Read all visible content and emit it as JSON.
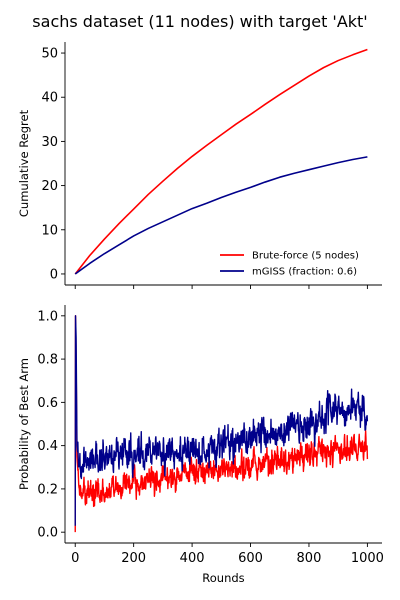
{
  "figure": {
    "title": "sachs dataset (11 nodes) with target 'Akt'"
  },
  "chart_data": [
    {
      "type": "line",
      "title": "",
      "xlabel": "",
      "ylabel": "Cumulative Regret",
      "xlim": [
        -35,
        1050
      ],
      "ylim": [
        -2.5,
        52.5
      ],
      "xticks": [
        0,
        200,
        400,
        600,
        800,
        1000
      ],
      "yticks": [
        0,
        10,
        20,
        30,
        40,
        50
      ],
      "show_x_tick_labels": false,
      "grid": false,
      "legend": "lower-right",
      "series": [
        {
          "name": "Brute-force (5 nodes)",
          "color": "#ff0000",
          "x": [
            0,
            50,
            100,
            150,
            200,
            250,
            300,
            350,
            400,
            450,
            500,
            550,
            600,
            650,
            700,
            750,
            800,
            850,
            900,
            950,
            1000
          ],
          "y": [
            0,
            4.2,
            7.9,
            11.4,
            14.7,
            18.0,
            21.0,
            23.9,
            26.6,
            29.1,
            31.5,
            33.9,
            36.1,
            38.4,
            40.6,
            42.7,
            44.8,
            46.7,
            48.3,
            49.6,
            50.8
          ]
        },
        {
          "name": "mGISS (fraction: 0.6)",
          "color": "#00008b",
          "x": [
            0,
            50,
            100,
            150,
            200,
            250,
            300,
            350,
            400,
            450,
            500,
            550,
            600,
            650,
            700,
            750,
            800,
            850,
            900,
            950,
            1000
          ],
          "y": [
            0,
            2.4,
            4.6,
            6.6,
            8.6,
            10.3,
            11.8,
            13.3,
            14.8,
            16.0,
            17.3,
            18.5,
            19.6,
            20.8,
            21.9,
            22.8,
            23.6,
            24.4,
            25.2,
            25.9,
            26.5
          ]
        }
      ]
    },
    {
      "type": "line",
      "title": "",
      "xlabel": "Rounds",
      "ylabel": "Probability of Best Arm",
      "xlim": [
        -35,
        1050
      ],
      "ylim": [
        -0.05,
        1.05
      ],
      "xticks": [
        0,
        200,
        400,
        600,
        800,
        1000
      ],
      "yticks": [
        0.0,
        0.2,
        0.4,
        0.6,
        0.8,
        1.0
      ],
      "grid": false,
      "legend": "none",
      "series": [
        {
          "color": "#ff0000",
          "noisy_trend": {
            "x": [
              0,
              1,
              3,
              6,
              12,
              30,
              100,
              200,
              300,
              400,
              500,
              600,
              700,
              800,
              900,
              1000
            ],
            "y": [
              0,
              1.0,
              0.8,
              0.35,
              0.2,
              0.17,
              0.18,
              0.22,
              0.25,
              0.27,
              0.29,
              0.31,
              0.33,
              0.35,
              0.38,
              0.41
            ],
            "noise": 0.05
          }
        },
        {
          "color": "#00008b",
          "noisy_trend": {
            "x": [
              0,
              1,
              3,
              6,
              12,
              30,
              100,
              200,
              300,
              400,
              500,
              600,
              700,
              800,
              900,
              1000
            ],
            "y": [
              0.03,
              1.0,
              0.9,
              0.4,
              0.3,
              0.32,
              0.34,
              0.36,
              0.36,
              0.37,
              0.4,
              0.43,
              0.46,
              0.5,
              0.58,
              0.55
            ],
            "noise": 0.06
          }
        }
      ]
    }
  ]
}
